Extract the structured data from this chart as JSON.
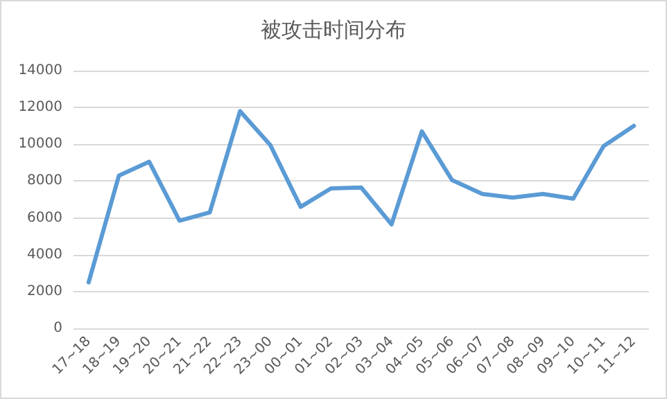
{
  "chart_data": {
    "type": "line",
    "title": "被攻击时间分布",
    "categories": [
      "17~18",
      "18~19",
      "19~20",
      "20~21",
      "21~22",
      "22~23",
      "23~00",
      "00~01",
      "01~02",
      "02~03",
      "03~04",
      "04~05",
      "05~06",
      "06~07",
      "07~08",
      "08~09",
      "09~10",
      "10~11",
      "11~12"
    ],
    "series": [
      {
        "color": "#5b9bd5",
        "values": [
          2500,
          8300,
          9050,
          5850,
          6300,
          11800,
          9950,
          6600,
          7600,
          7650,
          5650,
          10700,
          8050,
          7300,
          7100,
          7300,
          7050,
          9900,
          11000
        ]
      }
    ],
    "ylim": [
      0,
      14000
    ],
    "yticks": [
      0,
      2000,
      4000,
      6000,
      8000,
      10000,
      12000,
      14000
    ],
    "grid": "y",
    "marker": "none",
    "line_style": "solid"
  }
}
